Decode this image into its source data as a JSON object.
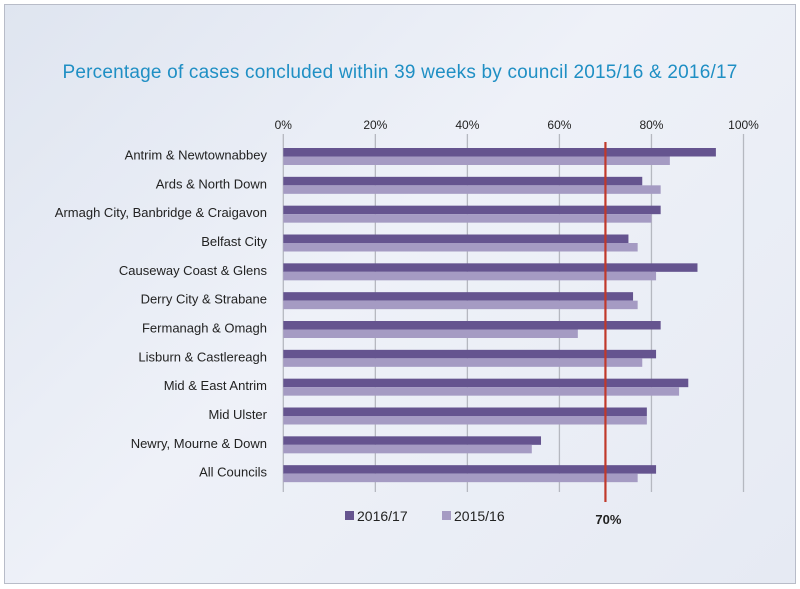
{
  "chart_data": {
    "type": "bar",
    "orientation": "horizontal",
    "title": "Percentage of cases concluded within 39 weeks by council 2015/16 & 2016/17",
    "categories": [
      "Antrim & Newtownabbey",
      "Ards & North Down",
      "Armagh City, Banbridge & Craigavon",
      "Belfast City",
      "Causeway Coast  & Glens",
      "Derry City & Strabane",
      "Fermanagh & Omagh",
      "Lisburn & Castlereagh",
      "Mid & East Antrim",
      "Mid Ulster",
      "Newry, Mourne & Down",
      "All Councils"
    ],
    "series": [
      {
        "name": "2016/17",
        "color": "#65548f",
        "values": [
          94,
          78,
          82,
          75,
          90,
          76,
          82,
          81,
          88,
          79,
          56,
          81
        ]
      },
      {
        "name": "2015/16",
        "color": "#a59bc3",
        "values": [
          84,
          82,
          80,
          77,
          81,
          77,
          64,
          78,
          86,
          79,
          54,
          77
        ]
      }
    ],
    "xlim": [
      0,
      100
    ],
    "xticks": [
      "0%",
      "20%",
      "40%",
      "60%",
      "80%",
      "100%"
    ],
    "xtick_values": [
      0,
      20,
      40,
      60,
      80,
      100
    ],
    "grid": true,
    "legend_position": "bottom",
    "reference_line": {
      "value": 70,
      "label": "70%",
      "color": "#c0392b"
    }
  }
}
